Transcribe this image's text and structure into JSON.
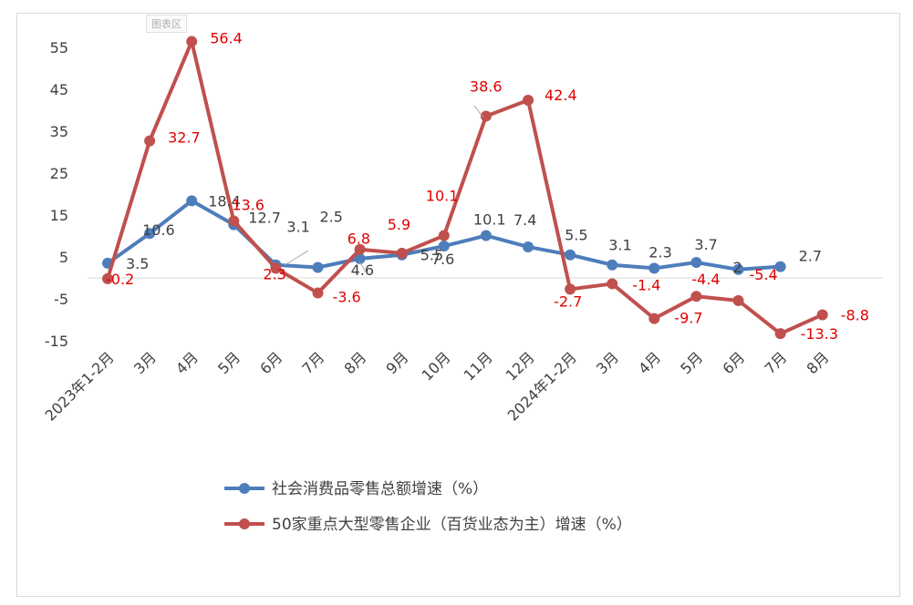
{
  "plot_area_tag": "图表区",
  "colors": {
    "series1": "#4e7dbb",
    "series2": "#c0504d",
    "label1": "#404040",
    "label2": "#e00000",
    "axis": "#d9d9d9"
  },
  "chart_data": {
    "type": "line",
    "title": "",
    "xlabel": "",
    "ylabel": "",
    "ylim": [
      -15,
      55
    ],
    "yticks": [
      -15,
      -5,
      5,
      15,
      25,
      35,
      45,
      55
    ],
    "grid": false,
    "legend_position": "bottom",
    "categories": [
      "2023年1-2月",
      "3月",
      "4月",
      "5月",
      "6月",
      "7月",
      "8月",
      "9月",
      "10月",
      "11月",
      "12月",
      "2024年1-2月",
      "3月",
      "4月",
      "5月",
      "6月",
      "7月",
      "8月"
    ],
    "series": [
      {
        "name": "社会消费品零售总额增速（%）",
        "values": [
          3.5,
          10.6,
          18.4,
          12.7,
          3.1,
          2.5,
          4.6,
          5.5,
          7.6,
          10.1,
          7.4,
          5.5,
          3.1,
          2.3,
          3.7,
          2,
          2.7,
          null
        ]
      },
      {
        "name": "50家重点大型零售企业（百货业态为主）增速（%）",
        "values": [
          -0.2,
          32.7,
          56.4,
          13.6,
          2.3,
          -3.6,
          6.8,
          5.9,
          10.1,
          38.6,
          42.4,
          -2.7,
          -1.4,
          -9.7,
          -4.4,
          -5.4,
          -13.3,
          -8.8
        ]
      }
    ]
  }
}
